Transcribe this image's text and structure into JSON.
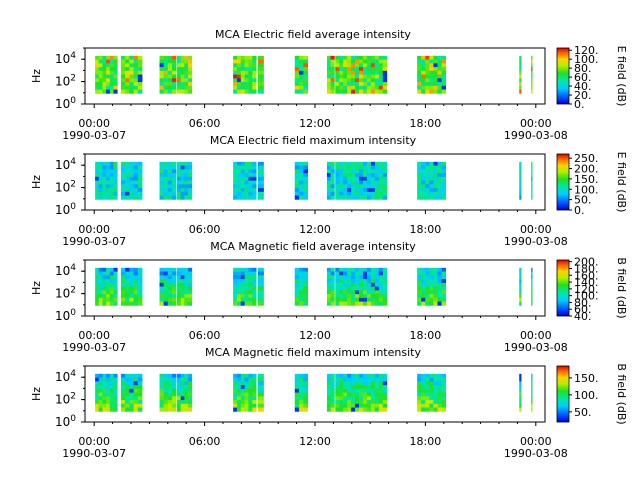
{
  "chart_data": [
    {
      "type": "heatmap",
      "title": "MCA  Electric field average intensity",
      "ylabel": "Hz",
      "colorbar_label": "E field (dB)",
      "colorbar_ticks": [
        "0.",
        "20.",
        "40.",
        "60.",
        "80.",
        "100.",
        "120."
      ],
      "clim": [
        0,
        125
      ],
      "yscale": "log",
      "ylim": [
        1,
        100000
      ],
      "y_ticks": [
        {
          "base": "10",
          "exp": "0"
        },
        {
          "base": "10",
          "exp": "2"
        },
        {
          "base": "10",
          "exp": "4"
        }
      ],
      "x_ticks": [
        "00:00",
        "06:00",
        "12:00",
        "18:00",
        "00:00"
      ],
      "x_dates": [
        "1990-03-07",
        "1990-03-08"
      ],
      "xlim_hours": [
        -0.5,
        24.5
      ],
      "segments_hours": [
        [
          0.05,
          1.25
        ],
        [
          1.45,
          2.6
        ],
        [
          3.55,
          4.45
        ],
        [
          4.5,
          5.3
        ],
        [
          7.55,
          8.8
        ],
        [
          8.9,
          9.2
        ],
        [
          10.9,
          11.6
        ],
        [
          12.65,
          13.05
        ],
        [
          13.1,
          15.9
        ],
        [
          17.55,
          19.1
        ],
        [
          23.1,
          23.2
        ],
        [
          23.75,
          23.8
        ]
      ],
      "dominant_level": 0.55,
      "colormap": "rainbow"
    },
    {
      "type": "heatmap",
      "title": "MCA  Electric field maximum intensity",
      "ylabel": "Hz",
      "colorbar_label": "E field (dB)",
      "colorbar_ticks": [
        "0.",
        "50.",
        "100.",
        "150.",
        "200.",
        "250."
      ],
      "clim": [
        0,
        270
      ],
      "yscale": "log",
      "ylim": [
        1,
        100000
      ],
      "y_ticks": [
        {
          "base": "10",
          "exp": "0"
        },
        {
          "base": "10",
          "exp": "2"
        },
        {
          "base": "10",
          "exp": "4"
        }
      ],
      "x_ticks": [
        "00:00",
        "06:00",
        "12:00",
        "18:00",
        "00:00"
      ],
      "x_dates": [
        "1990-03-07",
        "1990-03-08"
      ],
      "xlim_hours": [
        -0.5,
        24.5
      ],
      "segments_hours": [
        [
          0.05,
          1.25
        ],
        [
          1.45,
          2.6
        ],
        [
          3.55,
          4.45
        ],
        [
          4.5,
          5.3
        ],
        [
          7.55,
          8.8
        ],
        [
          8.9,
          9.2
        ],
        [
          10.9,
          11.6
        ],
        [
          12.65,
          13.05
        ],
        [
          13.1,
          15.9
        ],
        [
          17.55,
          19.1
        ],
        [
          23.1,
          23.2
        ],
        [
          23.75,
          23.8
        ]
      ],
      "dominant_level": 0.35,
      "colormap": "rainbow"
    },
    {
      "type": "heatmap",
      "title": "MCA  Magnetic field average intensity",
      "ylabel": "Hz",
      "colorbar_label": "B field (dB)",
      "colorbar_ticks": [
        "40.",
        "60.",
        "80.",
        "100.",
        "120.",
        "140.",
        "160.",
        "180.",
        "200."
      ],
      "clim": [
        40,
        205
      ],
      "yscale": "log",
      "ylim": [
        1,
        100000
      ],
      "y_ticks": [
        {
          "base": "10",
          "exp": "0"
        },
        {
          "base": "10",
          "exp": "2"
        },
        {
          "base": "10",
          "exp": "4"
        }
      ],
      "x_ticks": [
        "00:00",
        "06:00",
        "12:00",
        "18:00",
        "00:00"
      ],
      "x_dates": [
        "1990-03-07",
        "1990-03-08"
      ],
      "xlim_hours": [
        -0.5,
        24.5
      ],
      "segments_hours": [
        [
          0.05,
          1.25
        ],
        [
          1.45,
          2.6
        ],
        [
          3.55,
          4.45
        ],
        [
          4.5,
          5.3
        ],
        [
          7.55,
          8.8
        ],
        [
          8.9,
          9.2
        ],
        [
          10.9,
          11.6
        ],
        [
          12.65,
          13.05
        ],
        [
          13.1,
          15.9
        ],
        [
          17.55,
          19.1
        ],
        [
          23.1,
          23.2
        ],
        [
          23.75,
          23.8
        ]
      ],
      "dominant_level": 0.45,
      "colormap": "rainbow"
    },
    {
      "type": "heatmap",
      "title": "MCA  Magnetic field maximum intensity",
      "ylabel": "Hz",
      "colorbar_label": "B field (dB)",
      "colorbar_ticks": [
        "50.",
        "100.",
        "150."
      ],
      "clim": [
        20,
        185
      ],
      "yscale": "log",
      "ylim": [
        1,
        100000
      ],
      "y_ticks": [
        {
          "base": "10",
          "exp": "0"
        },
        {
          "base": "10",
          "exp": "2"
        },
        {
          "base": "10",
          "exp": "4"
        }
      ],
      "x_ticks": [
        "00:00",
        "06:00",
        "12:00",
        "18:00",
        "00:00"
      ],
      "x_dates": [
        "1990-03-07",
        "1990-03-08"
      ],
      "xlim_hours": [
        -0.5,
        24.5
      ],
      "segments_hours": [
        [
          0.05,
          1.25
        ],
        [
          1.45,
          2.6
        ],
        [
          3.55,
          4.45
        ],
        [
          4.5,
          5.3
        ],
        [
          7.55,
          8.8
        ],
        [
          8.9,
          9.2
        ],
        [
          10.9,
          11.6
        ],
        [
          12.65,
          13.05
        ],
        [
          13.1,
          15.9
        ],
        [
          17.55,
          19.1
        ],
        [
          23.1,
          23.2
        ],
        [
          23.75,
          23.8
        ]
      ],
      "dominant_level": 0.5,
      "colormap": "rainbow"
    }
  ]
}
